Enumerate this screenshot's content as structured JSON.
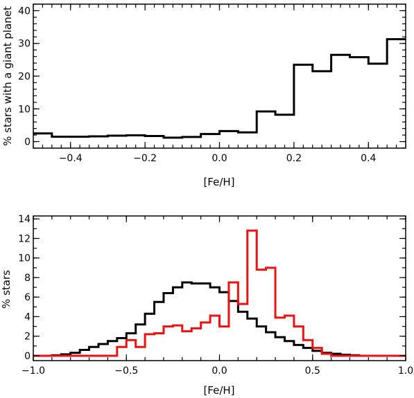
{
  "chart_data": [
    {
      "type": "step",
      "xlabel": "[Fe/H]",
      "ylabel": "% stars with a giant planet",
      "xlim": [
        -0.5,
        0.5
      ],
      "ylim": [
        -2,
        42
      ],
      "xticks": [
        -0.4,
        -0.2,
        0.0,
        0.2,
        0.4
      ],
      "xtick_labels": [
        "−0.4",
        "−0.2",
        "0.0",
        "0.2",
        "0.4"
      ],
      "yticks": [
        0,
        10,
        20,
        30,
        40
      ],
      "ytick_labels": [
        "0",
        "10",
        "20",
        "30",
        "40"
      ],
      "bin_width": 0.05,
      "series": [
        {
          "color": "#000000",
          "x_left": [
            -0.5,
            -0.45,
            -0.4,
            -0.35,
            -0.3,
            -0.25,
            -0.2,
            -0.15,
            -0.1,
            -0.05,
            0.0,
            0.05,
            0.1,
            0.15,
            0.2,
            0.25,
            0.3,
            0.35,
            0.4,
            0.45
          ],
          "values": [
            2.5,
            1.5,
            1.5,
            1.6,
            1.8,
            1.9,
            1.7,
            1.2,
            1.4,
            2.3,
            3.2,
            2.8,
            9.2,
            8.2,
            23.5,
            21.5,
            26.5,
            25.8,
            23.8,
            31.3
          ]
        }
      ]
    },
    {
      "type": "step",
      "xlabel": "[Fe/H]",
      "ylabel": "% stars",
      "xlim": [
        -1.0,
        1.0
      ],
      "ylim": [
        -0.5,
        14.3
      ],
      "xticks": [
        -1.0,
        -0.5,
        0.0,
        0.5,
        1.0
      ],
      "xtick_labels": [
        "−1.0",
        "−0.5",
        "0.0",
        "0.5",
        "1.0"
      ],
      "yticks": [
        0,
        2,
        4,
        6,
        8,
        10,
        12,
        14
      ],
      "ytick_labels": [
        "0",
        "2",
        "4",
        "6",
        "8",
        "10",
        "12",
        "14"
      ],
      "bin_width": 0.05,
      "series": [
        {
          "color": "#000000",
          "x_left": [
            -1.0,
            -0.95,
            -0.9,
            -0.85,
            -0.8,
            -0.75,
            -0.7,
            -0.65,
            -0.6,
            -0.55,
            -0.5,
            -0.45,
            -0.4,
            -0.35,
            -0.3,
            -0.25,
            -0.2,
            -0.15,
            -0.1,
            -0.05,
            0.0,
            0.05,
            0.1,
            0.15,
            0.2,
            0.25,
            0.3,
            0.35,
            0.4,
            0.45,
            0.5,
            0.55,
            0.6,
            0.65,
            0.7,
            0.75,
            0.8,
            0.85,
            0.9,
            0.95
          ],
          "values": [
            0.0,
            0.0,
            0.05,
            0.15,
            0.3,
            0.6,
            0.9,
            1.2,
            1.5,
            1.8,
            2.3,
            3.2,
            4.3,
            5.5,
            6.4,
            7.0,
            7.5,
            7.4,
            7.4,
            7.0,
            6.5,
            5.6,
            4.5,
            3.8,
            3.0,
            2.4,
            1.9,
            1.5,
            1.1,
            0.8,
            0.5,
            0.3,
            0.2,
            0.1,
            0.05,
            0.0,
            0.0,
            0.0,
            0.0,
            0.0
          ]
        },
        {
          "color": "#ee1111",
          "x_left": [
            -1.0,
            -0.95,
            -0.9,
            -0.85,
            -0.8,
            -0.75,
            -0.7,
            -0.65,
            -0.6,
            -0.55,
            -0.5,
            -0.45,
            -0.4,
            -0.35,
            -0.3,
            -0.25,
            -0.2,
            -0.15,
            -0.1,
            -0.05,
            0.0,
            0.05,
            0.1,
            0.15,
            0.2,
            0.25,
            0.3,
            0.35,
            0.4,
            0.45,
            0.5,
            0.55,
            0.6,
            0.65,
            0.7,
            0.75,
            0.8,
            0.85,
            0.9,
            0.95
          ],
          "values": [
            0.0,
            0.0,
            0.0,
            0.0,
            0.0,
            0.0,
            0.0,
            0.0,
            0.0,
            0.9,
            1.6,
            0.9,
            2.2,
            2.3,
            3.0,
            3.1,
            2.5,
            2.8,
            3.4,
            4.1,
            3.0,
            7.5,
            5.3,
            12.8,
            8.8,
            9.0,
            3.9,
            4.1,
            3.0,
            1.6,
            0.8,
            0.2,
            0.0,
            0.0,
            0.0,
            0.0,
            0.0,
            0.0,
            0.0,
            0.0
          ]
        }
      ]
    }
  ]
}
